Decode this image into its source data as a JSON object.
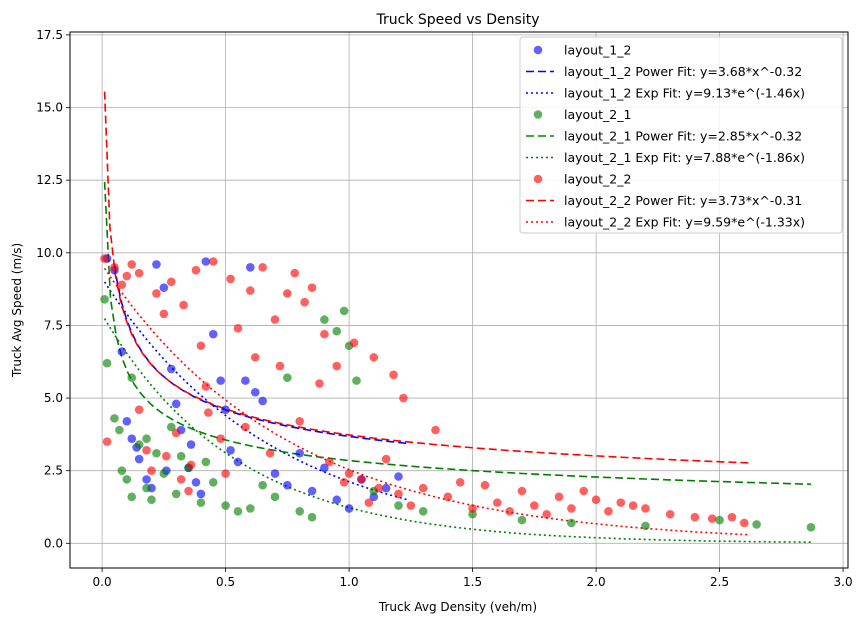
{
  "chart_data": {
    "type": "scatter",
    "title": "Truck Speed vs Density",
    "xlabel": "Truck Avg Density (veh/m)",
    "ylabel": "Truck Avg Speed (m/s)",
    "xlim": [
      -0.13,
      3.02
    ],
    "ylim": [
      -0.85,
      17.6
    ],
    "x_ticks": [
      "0.0",
      "0.5",
      "1.0",
      "1.5",
      "2.0",
      "2.5",
      "3.0"
    ],
    "y_ticks": [
      "0.0",
      "2.5",
      "5.0",
      "7.5",
      "10.0",
      "12.5",
      "15.0",
      "17.5"
    ],
    "grid": true,
    "legend_position": "top-right",
    "series": [
      {
        "name": "layout_1_2",
        "color": "#0000ff",
        "points": [
          [
            0.02,
            9.8
          ],
          [
            0.05,
            9.4
          ],
          [
            0.08,
            6.6
          ],
          [
            0.1,
            4.2
          ],
          [
            0.12,
            3.6
          ],
          [
            0.15,
            2.9
          ],
          [
            0.18,
            2.2
          ],
          [
            0.2,
            1.9
          ],
          [
            0.22,
            9.6
          ],
          [
            0.25,
            8.8
          ],
          [
            0.28,
            6.0
          ],
          [
            0.3,
            4.8
          ],
          [
            0.32,
            3.9
          ],
          [
            0.35,
            2.6
          ],
          [
            0.38,
            2.1
          ],
          [
            0.4,
            1.7
          ],
          [
            0.42,
            9.7
          ],
          [
            0.45,
            7.2
          ],
          [
            0.48,
            5.6
          ],
          [
            0.5,
            4.6
          ],
          [
            0.52,
            3.2
          ],
          [
            0.55,
            2.8
          ],
          [
            0.58,
            5.6
          ],
          [
            0.6,
            9.5
          ],
          [
            0.62,
            5.2
          ],
          [
            0.65,
            4.9
          ],
          [
            0.7,
            2.4
          ],
          [
            0.75,
            2.0
          ],
          [
            0.8,
            3.1
          ],
          [
            0.85,
            1.8
          ],
          [
            0.9,
            2.6
          ],
          [
            0.95,
            1.5
          ],
          [
            1.0,
            1.2
          ],
          [
            1.05,
            2.2
          ],
          [
            1.1,
            1.6
          ],
          [
            1.15,
            1.9
          ],
          [
            1.2,
            2.3
          ],
          [
            0.14,
            3.3
          ],
          [
            0.26,
            2.5
          ],
          [
            0.36,
            3.4
          ]
        ],
        "power_fit": {
          "label": "layout_1_2 Power Fit: y=3.68*x^-0.32",
          "a": 3.68,
          "b": -0.32,
          "x_range": [
            0.05,
            1.24
          ]
        },
        "exp_fit": {
          "label": "layout_1_2 Exp Fit: y=9.13*e^(-1.46x)",
          "a": 9.13,
          "b": -1.46,
          "x_range": [
            0.01,
            1.24
          ]
        }
      },
      {
        "name": "layout_2_1",
        "color": "#008000",
        "points": [
          [
            0.01,
            8.4
          ],
          [
            0.02,
            6.2
          ],
          [
            0.05,
            4.3
          ],
          [
            0.07,
            3.9
          ],
          [
            0.08,
            2.5
          ],
          [
            0.1,
            2.2
          ],
          [
            0.12,
            5.7
          ],
          [
            0.15,
            3.4
          ],
          [
            0.18,
            1.9
          ],
          [
            0.2,
            1.5
          ],
          [
            0.22,
            3.1
          ],
          [
            0.25,
            2.4
          ],
          [
            0.28,
            4.0
          ],
          [
            0.3,
            1.7
          ],
          [
            0.35,
            2.6
          ],
          [
            0.4,
            1.4
          ],
          [
            0.45,
            2.1
          ],
          [
            0.5,
            1.3
          ],
          [
            0.55,
            1.1
          ],
          [
            0.6,
            1.2
          ],
          [
            0.65,
            2.0
          ],
          [
            0.7,
            1.6
          ],
          [
            0.75,
            5.7
          ],
          [
            0.8,
            1.1
          ],
          [
            0.85,
            0.9
          ],
          [
            0.9,
            7.7
          ],
          [
            0.95,
            7.3
          ],
          [
            0.98,
            8.0
          ],
          [
            1.0,
            6.8
          ],
          [
            1.03,
            5.6
          ],
          [
            1.1,
            1.8
          ],
          [
            1.2,
            1.3
          ],
          [
            1.3,
            1.1
          ],
          [
            1.5,
            1.0
          ],
          [
            1.7,
            0.8
          ],
          [
            1.9,
            0.7
          ],
          [
            2.2,
            0.6
          ],
          [
            2.5,
            0.8
          ],
          [
            2.65,
            0.65
          ],
          [
            2.87,
            0.55
          ],
          [
            0.12,
            1.6
          ],
          [
            0.18,
            3.6
          ],
          [
            0.32,
            3.0
          ],
          [
            0.42,
            2.8
          ]
        ],
        "power_fit": {
          "label": "layout_2_1 Power Fit: y=2.85*x^-0.32",
          "a": 2.85,
          "b": -0.32,
          "x_range": [
            0.01,
            2.87
          ]
        },
        "exp_fit": {
          "label": "layout_2_1 Exp Fit: y=7.88*e^(-1.86x)",
          "a": 7.88,
          "b": -1.86,
          "x_range": [
            0.01,
            2.87
          ]
        }
      },
      {
        "name": "layout_2_2",
        "color": "#ff0000",
        "points": [
          [
            0.01,
            9.8
          ],
          [
            0.02,
            3.5
          ],
          [
            0.05,
            9.5
          ],
          [
            0.08,
            8.9
          ],
          [
            0.1,
            9.2
          ],
          [
            0.12,
            9.6
          ],
          [
            0.15,
            4.6
          ],
          [
            0.18,
            3.2
          ],
          [
            0.2,
            2.5
          ],
          [
            0.22,
            8.6
          ],
          [
            0.25,
            7.9
          ],
          [
            0.28,
            9.0
          ],
          [
            0.3,
            3.8
          ],
          [
            0.32,
            2.2
          ],
          [
            0.35,
            1.8
          ],
          [
            0.38,
            9.4
          ],
          [
            0.4,
            6.8
          ],
          [
            0.42,
            5.4
          ],
          [
            0.45,
            9.7
          ],
          [
            0.48,
            3.6
          ],
          [
            0.5,
            2.4
          ],
          [
            0.52,
            9.1
          ],
          [
            0.55,
            7.4
          ],
          [
            0.58,
            4.0
          ],
          [
            0.6,
            8.7
          ],
          [
            0.62,
            6.4
          ],
          [
            0.65,
            9.5
          ],
          [
            0.68,
            3.1
          ],
          [
            0.7,
            7.7
          ],
          [
            0.72,
            6.1
          ],
          [
            0.75,
            8.6
          ],
          [
            0.78,
            9.3
          ],
          [
            0.8,
            4.2
          ],
          [
            0.82,
            8.3
          ],
          [
            0.85,
            8.8
          ],
          [
            0.88,
            5.5
          ],
          [
            0.9,
            7.2
          ],
          [
            0.92,
            2.8
          ],
          [
            0.95,
            6.1
          ],
          [
            0.98,
            2.1
          ],
          [
            1.0,
            2.4
          ],
          [
            1.02,
            6.9
          ],
          [
            1.05,
            2.2
          ],
          [
            1.08,
            1.4
          ],
          [
            1.1,
            6.4
          ],
          [
            1.12,
            1.9
          ],
          [
            1.15,
            2.9
          ],
          [
            1.18,
            5.8
          ],
          [
            1.2,
            1.7
          ],
          [
            1.22,
            5.0
          ],
          [
            1.25,
            1.3
          ],
          [
            1.3,
            1.9
          ],
          [
            1.35,
            3.9
          ],
          [
            1.4,
            1.6
          ],
          [
            1.45,
            2.1
          ],
          [
            1.5,
            1.2
          ],
          [
            1.55,
            2.0
          ],
          [
            1.6,
            1.4
          ],
          [
            1.65,
            1.1
          ],
          [
            1.7,
            1.8
          ],
          [
            1.75,
            1.3
          ],
          [
            1.8,
            1.0
          ],
          [
            1.85,
            1.6
          ],
          [
            1.9,
            1.2
          ],
          [
            1.95,
            1.8
          ],
          [
            2.0,
            1.5
          ],
          [
            2.05,
            1.1
          ],
          [
            2.1,
            1.4
          ],
          [
            2.15,
            1.3
          ],
          [
            2.2,
            1.2
          ],
          [
            2.3,
            1.0
          ],
          [
            2.4,
            0.9
          ],
          [
            2.47,
            0.85
          ],
          [
            2.55,
            0.9
          ],
          [
            2.6,
            0.7
          ],
          [
            0.15,
            9.3
          ],
          [
            0.33,
            8.2
          ],
          [
            0.43,
            4.5
          ],
          [
            0.26,
            3.0
          ],
          [
            0.36,
            2.7
          ]
        ],
        "power_fit": {
          "label": "layout_2_2 Power Fit: y=3.73*x^-0.31",
          "a": 3.73,
          "b": -0.31,
          "x_range": [
            0.01,
            2.62
          ]
        },
        "exp_fit": {
          "label": "layout_2_2 Exp Fit: y=9.59*e^(-1.33x)",
          "a": 9.59,
          "b": -1.33,
          "x_range": [
            0.01,
            2.62
          ]
        }
      }
    ]
  }
}
